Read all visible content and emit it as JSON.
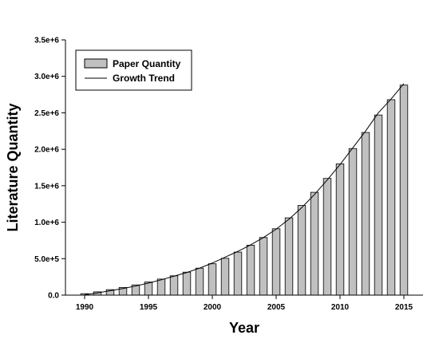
{
  "chart_data": {
    "type": "bar",
    "xlabel": "Year",
    "ylabel": "Literature Quantity",
    "x": [
      1990,
      1991,
      1992,
      1993,
      1994,
      1995,
      1996,
      1997,
      1998,
      1999,
      2000,
      2001,
      2002,
      2003,
      2004,
      2005,
      2006,
      2007,
      2008,
      2009,
      2010,
      2011,
      2012,
      2013,
      2014,
      2015
    ],
    "series": [
      {
        "name": "Paper Quantity",
        "type": "bar",
        "values": [
          20000,
          45000,
          75000,
          105000,
          140000,
          180000,
          220000,
          265000,
          315000,
          370000,
          430000,
          505000,
          590000,
          685000,
          790000,
          910000,
          1060000,
          1230000,
          1410000,
          1600000,
          1800000,
          2010000,
          2230000,
          2470000,
          2680000,
          2880000
        ],
        "color": "#c0c0c0"
      },
      {
        "name": "Growth Trend",
        "type": "line",
        "values": [
          5000,
          30000,
          60000,
          90000,
          125000,
          165000,
          210000,
          260000,
          310000,
          370000,
          440000,
          520000,
          600000,
          690000,
          790000,
          905000,
          1040000,
          1200000,
          1380000,
          1580000,
          1790000,
          2020000,
          2250000,
          2500000,
          2690000,
          2900000
        ],
        "color": "#000000"
      }
    ],
    "xticks": [
      1990,
      1995,
      2000,
      2005,
      2010,
      2015
    ],
    "yticks": [
      "0.0",
      "5.0e+5",
      "1.0e+6",
      "1.5e+6",
      "2.0e+6",
      "2.5e+6",
      "3.0e+6",
      "3.5e+6"
    ],
    "ytick_values": [
      0,
      500000,
      1000000,
      1500000,
      2000000,
      2500000,
      3000000,
      3500000
    ],
    "xlim": [
      1988.5,
      2016.5
    ],
    "ylim": [
      0,
      3500000
    ],
    "legend": "top-left",
    "grid": false
  }
}
